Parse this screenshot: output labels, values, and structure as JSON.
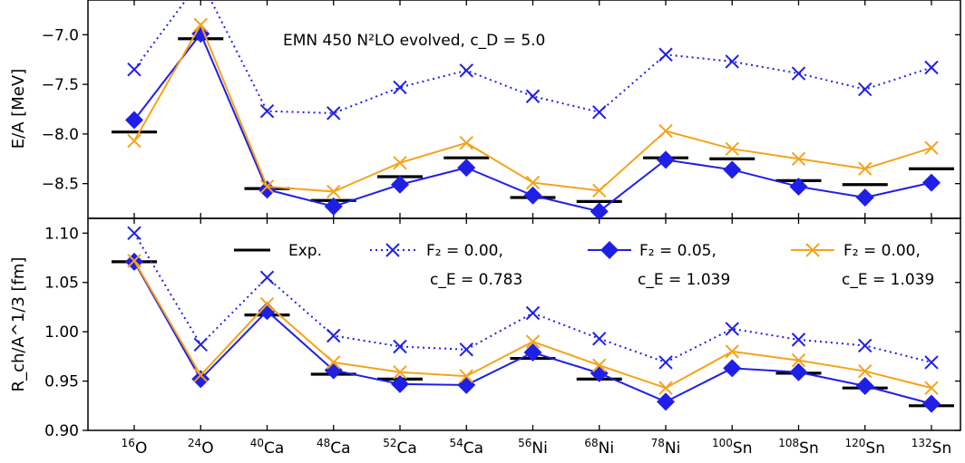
{
  "colors": {
    "exp": "#000000",
    "series_dotted": "#1f1fe8",
    "series_diamond": "#1f1fe8",
    "series_orange": "#f5a31a"
  },
  "chart_data": [
    {
      "type": "line",
      "panel": "top",
      "annotation": "EMN 450 N²LO evolved, c_D = 5.0",
      "ylabel": "E/A [MeV]",
      "ylim": [
        -8.85,
        -6.65
      ],
      "yticks": [
        "-7.0",
        "-7.5",
        "-8.0",
        "-8.5"
      ],
      "categories": [
        "16O",
        "24O",
        "40Ca",
        "48Ca",
        "52Ca",
        "54Ca",
        "56Ni",
        "68Ni",
        "78Ni",
        "100Sn",
        "108Sn",
        "120Sn",
        "132Sn"
      ],
      "exp": [
        -7.98,
        -7.04,
        -8.55,
        -8.67,
        -8.43,
        -8.24,
        -8.64,
        -8.68,
        -8.24,
        -8.25,
        -8.47,
        -8.51,
        -8.35
      ],
      "series": [
        {
          "key": "dotted",
          "values": [
            -7.35,
            -6.45,
            -7.77,
            -7.79,
            -7.53,
            -7.36,
            -7.62,
            -7.78,
            -7.2,
            -7.27,
            -7.39,
            -7.55,
            -7.33
          ]
        },
        {
          "key": "diamond",
          "values": [
            -7.86,
            -6.99,
            -8.56,
            -8.73,
            -8.51,
            -8.34,
            -8.62,
            -8.78,
            -8.26,
            -8.36,
            -8.53,
            -8.64,
            -8.49
          ]
        },
        {
          "key": "orange",
          "values": [
            -8.07,
            -6.9,
            -8.53,
            -8.58,
            -8.29,
            -8.09,
            -8.49,
            -8.57,
            -7.97,
            -8.15,
            -8.25,
            -8.35,
            -8.14
          ]
        }
      ]
    },
    {
      "type": "line",
      "panel": "bottom",
      "ylabel": "R_ch/A^1/3 [fm]",
      "ylim": [
        0.9,
        1.115
      ],
      "yticks": [
        "0.90",
        "0.95",
        "1.00",
        "1.05",
        "1.10"
      ],
      "categories": [
        "16O",
        "24O",
        "40Ca",
        "48Ca",
        "52Ca",
        "54Ca",
        "56Ni",
        "68Ni",
        "78Ni",
        "100Sn",
        "108Sn",
        "120Sn",
        "132Sn"
      ],
      "exp": [
        1.071,
        null,
        1.017,
        0.957,
        0.952,
        null,
        0.973,
        0.952,
        null,
        null,
        0.958,
        0.943,
        0.925
      ],
      "series": [
        {
          "key": "dotted",
          "values": [
            1.1,
            0.987,
            1.055,
            0.996,
            0.985,
            0.982,
            1.019,
            0.993,
            0.969,
            1.003,
            0.992,
            0.986,
            0.969
          ]
        },
        {
          "key": "diamond",
          "values": [
            1.071,
            0.952,
            1.021,
            0.961,
            0.947,
            0.946,
            0.979,
            0.958,
            0.929,
            0.963,
            0.959,
            0.945,
            0.927
          ]
        },
        {
          "key": "orange",
          "values": [
            1.072,
            0.956,
            1.028,
            0.969,
            0.959,
            0.955,
            0.99,
            0.966,
            0.943,
            0.98,
            0.971,
            0.96,
            0.943
          ]
        }
      ]
    }
  ],
  "legend": {
    "exp": "Exp.",
    "dotted_line1": "F₂ = 0.00,",
    "dotted_line2": "c_E = 0.783",
    "diamond_line1": "F₂ = 0.05,",
    "diamond_line2": "c_E = 1.039",
    "orange_line1": "F₂ = 0.00,",
    "orange_line2": "c_E = 1.039"
  },
  "xticks": [
    {
      "mass": "16",
      "el": "O"
    },
    {
      "mass": "24",
      "el": "O"
    },
    {
      "mass": "40",
      "el": "Ca"
    },
    {
      "mass": "48",
      "el": "Ca"
    },
    {
      "mass": "52",
      "el": "Ca"
    },
    {
      "mass": "54",
      "el": "Ca"
    },
    {
      "mass": "56",
      "el": "Ni"
    },
    {
      "mass": "68",
      "el": "Ni"
    },
    {
      "mass": "78",
      "el": "Ni"
    },
    {
      "mass": "100",
      "el": "Sn"
    },
    {
      "mass": "108",
      "el": "Sn"
    },
    {
      "mass": "120",
      "el": "Sn"
    },
    {
      "mass": "132",
      "el": "Sn"
    }
  ]
}
